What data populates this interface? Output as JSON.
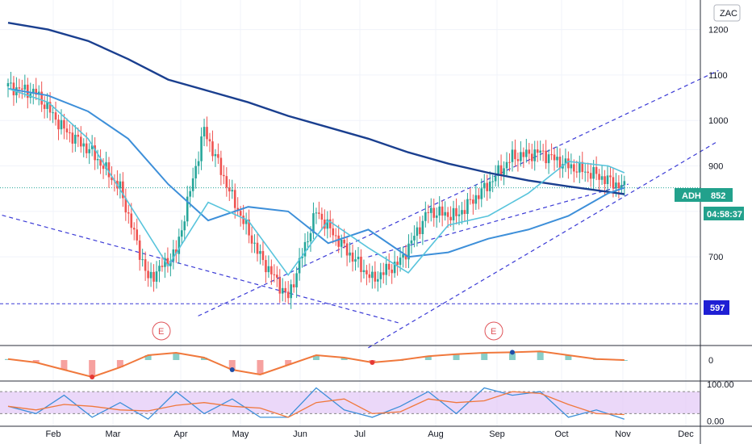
{
  "symbol_badge": "ZAC",
  "price_tag": {
    "ticker": "ADH",
    "value": "852",
    "countdown": "04:58:37"
  },
  "level_tag": "597",
  "earnings_marker": "E",
  "colors": {
    "up": "#26a69a",
    "down": "#ef5350",
    "sma200": "#1a3f8f",
    "sma50": "#3d8fd9",
    "sma20": "#58c4dc",
    "trend": "#3b3bd6",
    "price_tag": "#22a18c",
    "level_tag": "#1f1fd4",
    "stoch_band": "#e2c8f7"
  },
  "chart_data": [
    {
      "type": "candlestick",
      "title": "",
      "x_ticks": [
        "Feb",
        "Mar",
        "Apr",
        "May",
        "Jun",
        "Jul",
        "Aug",
        "Sep",
        "Oct",
        "Nov",
        "Dec"
      ],
      "y_ticks": [
        "700",
        "800",
        "900",
        "1000",
        "1100",
        "1200"
      ],
      "ylim": [
        505,
        1265
      ],
      "last_price": 852,
      "horizontal_level": 597,
      "earnings_months": [
        "Mar",
        "Sep"
      ],
      "series": [
        {
          "kind": "ohlc",
          "days": [
            0,
            14,
            28,
            42,
            56,
            70,
            84,
            98,
            112,
            126,
            140,
            154,
            168,
            182,
            196,
            210,
            224,
            238,
            252,
            266,
            280,
            294,
            308
          ],
          "close": [
            1075,
            1060,
            980,
            930,
            850,
            650,
            710,
            980,
            830,
            700,
            610,
            800,
            720,
            650,
            690,
            800,
            790,
            850,
            920,
            930,
            900,
            880,
            852
          ]
        },
        {
          "kind": "line",
          "days": [
            0,
            20,
            40,
            60,
            80,
            100,
            120,
            140,
            160,
            180,
            200,
            220,
            240,
            260,
            280,
            300,
            308
          ],
          "values": [
            1215,
            1200,
            1175,
            1135,
            1090,
            1065,
            1040,
            1010,
            985,
            960,
            930,
            905,
            885,
            868,
            855,
            843,
            838
          ]
        },
        {
          "kind": "line",
          "days": [
            0,
            20,
            40,
            60,
            80,
            100,
            120,
            140,
            160,
            180,
            200,
            220,
            240,
            260,
            280,
            300,
            308
          ],
          "values": [
            1070,
            1055,
            1020,
            960,
            860,
            780,
            810,
            800,
            730,
            760,
            700,
            710,
            740,
            760,
            790,
            840,
            852
          ]
        },
        {
          "kind": "line",
          "days": [
            0,
            20,
            40,
            60,
            80,
            100,
            120,
            140,
            160,
            180,
            200,
            220,
            240,
            260,
            280,
            300,
            308
          ],
          "values": [
            1070,
            1040,
            960,
            820,
            680,
            820,
            780,
            660,
            780,
            720,
            665,
            770,
            790,
            840,
            910,
            900,
            885
          ]
        }
      ],
      "trendlines": [
        {
          "from": [
            -10,
            800
          ],
          "to": [
            195,
            555
          ]
        },
        {
          "from": [
            95,
            570
          ],
          "to": [
            355,
            1110
          ]
        },
        {
          "from": [
            180,
            500
          ],
          "to": [
            355,
            955
          ]
        },
        {
          "from": [
            180,
            700
          ],
          "to": [
            310,
            860
          ]
        }
      ]
    },
    {
      "type": "area",
      "title": "",
      "y_ticks": [
        "0"
      ],
      "values": [
        0.2,
        -0.5,
        -2.0,
        -3.5,
        -1.5,
        1.0,
        1.5,
        0.5,
        -2.0,
        -3.0,
        -1.0,
        1.0,
        0.5,
        -0.5,
        0.0,
        0.8,
        1.2,
        1.5,
        1.6,
        1.8,
        1.0,
        0.2,
        0.0
      ]
    },
    {
      "type": "line",
      "title": "",
      "y_ticks": [
        "100.00",
        "0.00"
      ],
      "ylim": [
        -10,
        100
      ],
      "band": [
        20,
        80
      ],
      "values": [
        40,
        20,
        70,
        10,
        50,
        5,
        80,
        20,
        60,
        10,
        10,
        90,
        30,
        10,
        40,
        80,
        20,
        90,
        70,
        80,
        10,
        30,
        5
      ]
    }
  ]
}
